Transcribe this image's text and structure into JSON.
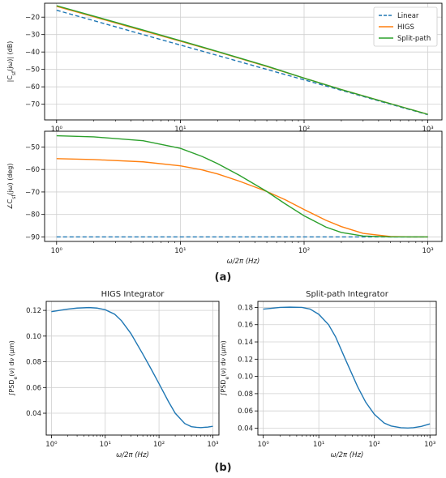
{
  "figure_labels": {
    "a": "(a)",
    "b": "(b)"
  },
  "colors": {
    "linear": "#1f77b4",
    "higs": "#ff7f0e",
    "split": "#2ca02c",
    "blue": "#1f77b4",
    "grid": "#d0d0d0",
    "axis": "#000000"
  },
  "chart_data": [
    {
      "id": "mag",
      "type": "line",
      "title": "",
      "xlabel": "",
      "ylabel": "|C_sf(jω)| (dB)",
      "xscale": "log",
      "xlim": [
        0.8,
        1300
      ],
      "ylim": [
        -79,
        -12
      ],
      "xticks": [
        1,
        10,
        100,
        1000
      ],
      "xtick_labels": [
        "10⁰",
        "10¹",
        "10²",
        "10³"
      ],
      "yticks": [
        -70,
        -60,
        -50,
        -40,
        -30,
        -20
      ],
      "ytick_labels": [
        "−70",
        "−60",
        "−50",
        "−40",
        "−30",
        "−20"
      ],
      "grid": true,
      "legend": "top-right",
      "series": [
        {
          "name": "Linear",
          "style": "dashed",
          "color": "#1f77b4",
          "x": [
            1,
            2,
            5,
            10,
            20,
            50,
            100,
            200,
            500,
            1000
          ],
          "y": [
            -16.0,
            -22.0,
            -30.0,
            -36.0,
            -42.0,
            -50.0,
            -56.0,
            -62.0,
            -70.0,
            -76.0
          ]
        },
        {
          "name": "HIGS",
          "style": "solid",
          "color": "#ff7f0e",
          "x": [
            1,
            2,
            5,
            10,
            20,
            50,
            100,
            200,
            500,
            1000
          ],
          "y": [
            -13.8,
            -19.8,
            -27.8,
            -33.8,
            -39.9,
            -48.3,
            -55.0,
            -61.6,
            -69.7,
            -75.8
          ]
        },
        {
          "name": "Split-path",
          "style": "solid",
          "color": "#2ca02c",
          "x": [
            1,
            2,
            5,
            10,
            20,
            50,
            100,
            200,
            500,
            1000
          ],
          "y": [
            -13.4,
            -19.4,
            -27.4,
            -33.5,
            -39.7,
            -48.1,
            -55.0,
            -61.6,
            -69.7,
            -75.8
          ]
        }
      ]
    },
    {
      "id": "phase",
      "type": "line",
      "title": "",
      "xlabel": "ω/2π (Hz)",
      "ylabel": "∠C_sf(jω) (deg)",
      "xscale": "log",
      "xlim": [
        0.8,
        1300
      ],
      "ylim": [
        -92,
        -43
      ],
      "xticks": [
        1,
        10,
        100,
        1000
      ],
      "xtick_labels": [
        "10⁰",
        "10¹",
        "10²",
        "10³"
      ],
      "yticks": [
        -90,
        -80,
        -70,
        -60,
        -50
      ],
      "ytick_labels": [
        "−90",
        "−80",
        "−70",
        "−60",
        "−50"
      ],
      "grid": true,
      "series": [
        {
          "name": "Linear",
          "style": "dashed",
          "color": "#1f77b4",
          "x": [
            1,
            1000
          ],
          "y": [
            -90,
            -90
          ]
        },
        {
          "name": "HIGS",
          "style": "solid",
          "color": "#ff7f0e",
          "x": [
            1,
            2,
            5,
            10,
            15,
            20,
            30,
            50,
            70,
            100,
            150,
            200,
            300,
            500,
            700,
            1000
          ],
          "y": [
            -55.2,
            -55.6,
            -56.6,
            -58.4,
            -60.2,
            -62.0,
            -65.2,
            -69.8,
            -73.4,
            -77.8,
            -82.6,
            -85.4,
            -88.4,
            -89.8,
            -90.0,
            -90.0
          ]
        },
        {
          "name": "Split-path",
          "style": "solid",
          "color": "#2ca02c",
          "x": [
            1,
            2,
            5,
            10,
            15,
            20,
            30,
            50,
            70,
            100,
            150,
            200,
            300,
            500,
            700,
            1000
          ],
          "y": [
            -45.0,
            -45.5,
            -47.2,
            -50.6,
            -54.2,
            -57.4,
            -62.6,
            -69.8,
            -75.2,
            -80.6,
            -85.6,
            -88.0,
            -89.6,
            -90.0,
            -90.0,
            -90.0
          ]
        }
      ]
    },
    {
      "id": "higs_int",
      "type": "line",
      "title": "HIGS Integrator",
      "xlabel": "ω/2π (Hz)",
      "ylabel": "∫PSD_e(ν) dν (μm)",
      "xscale": "log",
      "xlim": [
        0.8,
        1300
      ],
      "ylim": [
        0.023,
        0.127
      ],
      "xticks": [
        1,
        10,
        100,
        1000
      ],
      "xtick_labels": [
        "10⁰",
        "10¹",
        "10²",
        "10³"
      ],
      "yticks": [
        0.04,
        0.06,
        0.08,
        0.1,
        0.12
      ],
      "ytick_labels": [
        "0.04",
        "0.06",
        "0.08",
        "0.10",
        "0.12"
      ],
      "grid": true,
      "series": [
        {
          "name": "",
          "color": "#1f77b4",
          "x": [
            1,
            2,
            3,
            5,
            7,
            10,
            15,
            20,
            30,
            50,
            70,
            100,
            150,
            200,
            300,
            400,
            500,
            600,
            700,
            800,
            1000
          ],
          "y": [
            0.119,
            0.121,
            0.1218,
            0.1222,
            0.1218,
            0.1205,
            0.117,
            0.112,
            0.102,
            0.086,
            0.075,
            0.063,
            0.049,
            0.04,
            0.032,
            0.0295,
            0.029,
            0.0288,
            0.029,
            0.0292,
            0.0298
          ]
        }
      ]
    },
    {
      "id": "split_int",
      "type": "line",
      "title": "Split-path Integrator",
      "xlabel": "ω/2π (Hz)",
      "ylabel": "∫PSD_e(ν) dν (μm)",
      "xscale": "log",
      "xlim": [
        0.8,
        1300
      ],
      "ylim": [
        0.032,
        0.187
      ],
      "xticks": [
        1,
        10,
        100,
        1000
      ],
      "xtick_labels": [
        "10⁰",
        "10¹",
        "10²",
        "10³"
      ],
      "yticks": [
        0.04,
        0.06,
        0.08,
        0.1,
        0.12,
        0.14,
        0.16,
        0.18
      ],
      "ytick_labels": [
        "0.04",
        "0.06",
        "0.08",
        "0.10",
        "0.12",
        "0.14",
        "0.16",
        "0.18"
      ],
      "grid": true,
      "series": [
        {
          "name": "",
          "color": "#1f77b4",
          "x": [
            1,
            2,
            3,
            5,
            7,
            10,
            15,
            20,
            30,
            50,
            70,
            100,
            150,
            200,
            300,
            400,
            500,
            700,
            1000
          ],
          "y": [
            0.178,
            0.18,
            0.1803,
            0.18,
            0.178,
            0.172,
            0.16,
            0.146,
            0.12,
            0.088,
            0.07,
            0.056,
            0.046,
            0.0425,
            0.0405,
            0.0402,
            0.0405,
            0.042,
            0.045
          ]
        }
      ]
    }
  ]
}
